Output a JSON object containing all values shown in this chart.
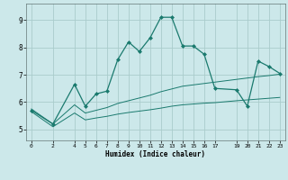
{
  "xlabel": "Humidex (Indice chaleur)",
  "ylabel": "",
  "background_color": "#cce8ea",
  "plot_bg_color": "#cce8ea",
  "grid_color": "#aacccc",
  "line_color": "#1a7a6e",
  "xlim": [
    -0.5,
    23.5
  ],
  "ylim": [
    4.6,
    9.6
  ],
  "xticks": [
    0,
    2,
    4,
    5,
    6,
    7,
    8,
    9,
    10,
    11,
    12,
    13,
    14,
    15,
    16,
    17,
    19,
    20,
    21,
    22,
    23
  ],
  "yticks": [
    5,
    6,
    7,
    8,
    9
  ],
  "series1_x": [
    0,
    2,
    4,
    5,
    6,
    7,
    8,
    9,
    10,
    11,
    12,
    13,
    14,
    15,
    16,
    17,
    19,
    20,
    21,
    22,
    23
  ],
  "series1_y": [
    5.7,
    5.2,
    6.65,
    5.85,
    6.3,
    6.4,
    7.55,
    8.2,
    7.85,
    8.35,
    9.1,
    9.1,
    8.05,
    8.05,
    7.75,
    6.5,
    6.45,
    5.85,
    7.5,
    7.3,
    7.05
  ],
  "series2_x": [
    0,
    2,
    4,
    5,
    6,
    7,
    8,
    9,
    10,
    11,
    12,
    13,
    14,
    15,
    16,
    17,
    19,
    20,
    21,
    22,
    23
  ],
  "series2_y": [
    5.75,
    5.2,
    5.9,
    5.6,
    5.7,
    5.8,
    5.95,
    6.05,
    6.15,
    6.25,
    6.38,
    6.48,
    6.58,
    6.63,
    6.68,
    6.73,
    6.83,
    6.88,
    6.93,
    6.97,
    7.02
  ],
  "series3_x": [
    0,
    2,
    4,
    5,
    6,
    7,
    8,
    9,
    10,
    11,
    12,
    13,
    14,
    15,
    16,
    17,
    19,
    20,
    21,
    22,
    23
  ],
  "series3_y": [
    5.65,
    5.1,
    5.6,
    5.35,
    5.42,
    5.48,
    5.56,
    5.62,
    5.67,
    5.72,
    5.78,
    5.85,
    5.9,
    5.93,
    5.96,
    5.98,
    6.05,
    6.08,
    6.11,
    6.14,
    6.17
  ]
}
